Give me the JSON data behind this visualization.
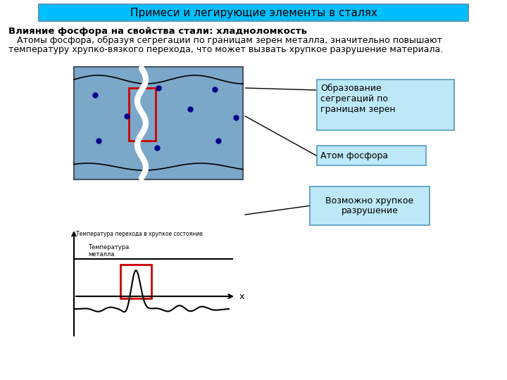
{
  "title": "Примеси и легирующие элементы в сталях",
  "title_bg": "#00BFFF",
  "title_border": "#5599BB",
  "bold_heading": "Влияние фосфора на свойства стали: хладноломкость",
  "para_line1": "   Атомы фосфора, образуя сегрегации по границам зерен металла, значительно повышают",
  "para_line2": "температуру хрупко-вязкого перехода, что может вызвать хрупкое разрушение материала.",
  "box1_text": "Образование\nсегрегаций по\nграницам зерен",
  "box2_text": "Атом фосфора",
  "box3_text": "Возможно хрупкое\nразрушение",
  "graph_title": "Температура перехода в хрупкое состояние",
  "graph_label_metal": "Температура\nметалла",
  "graph_xlabel": "x",
  "box_fill": "#BDE8F8",
  "box_edge": "#5599BB",
  "grain_fill": "#7BA7C8",
  "grain_edge": "#445566",
  "white_color": "#FFFFFF",
  "red_color": "#CC0000",
  "dot_color": "#00008B",
  "bg_color": "#FFFFFF",
  "black": "#000000"
}
